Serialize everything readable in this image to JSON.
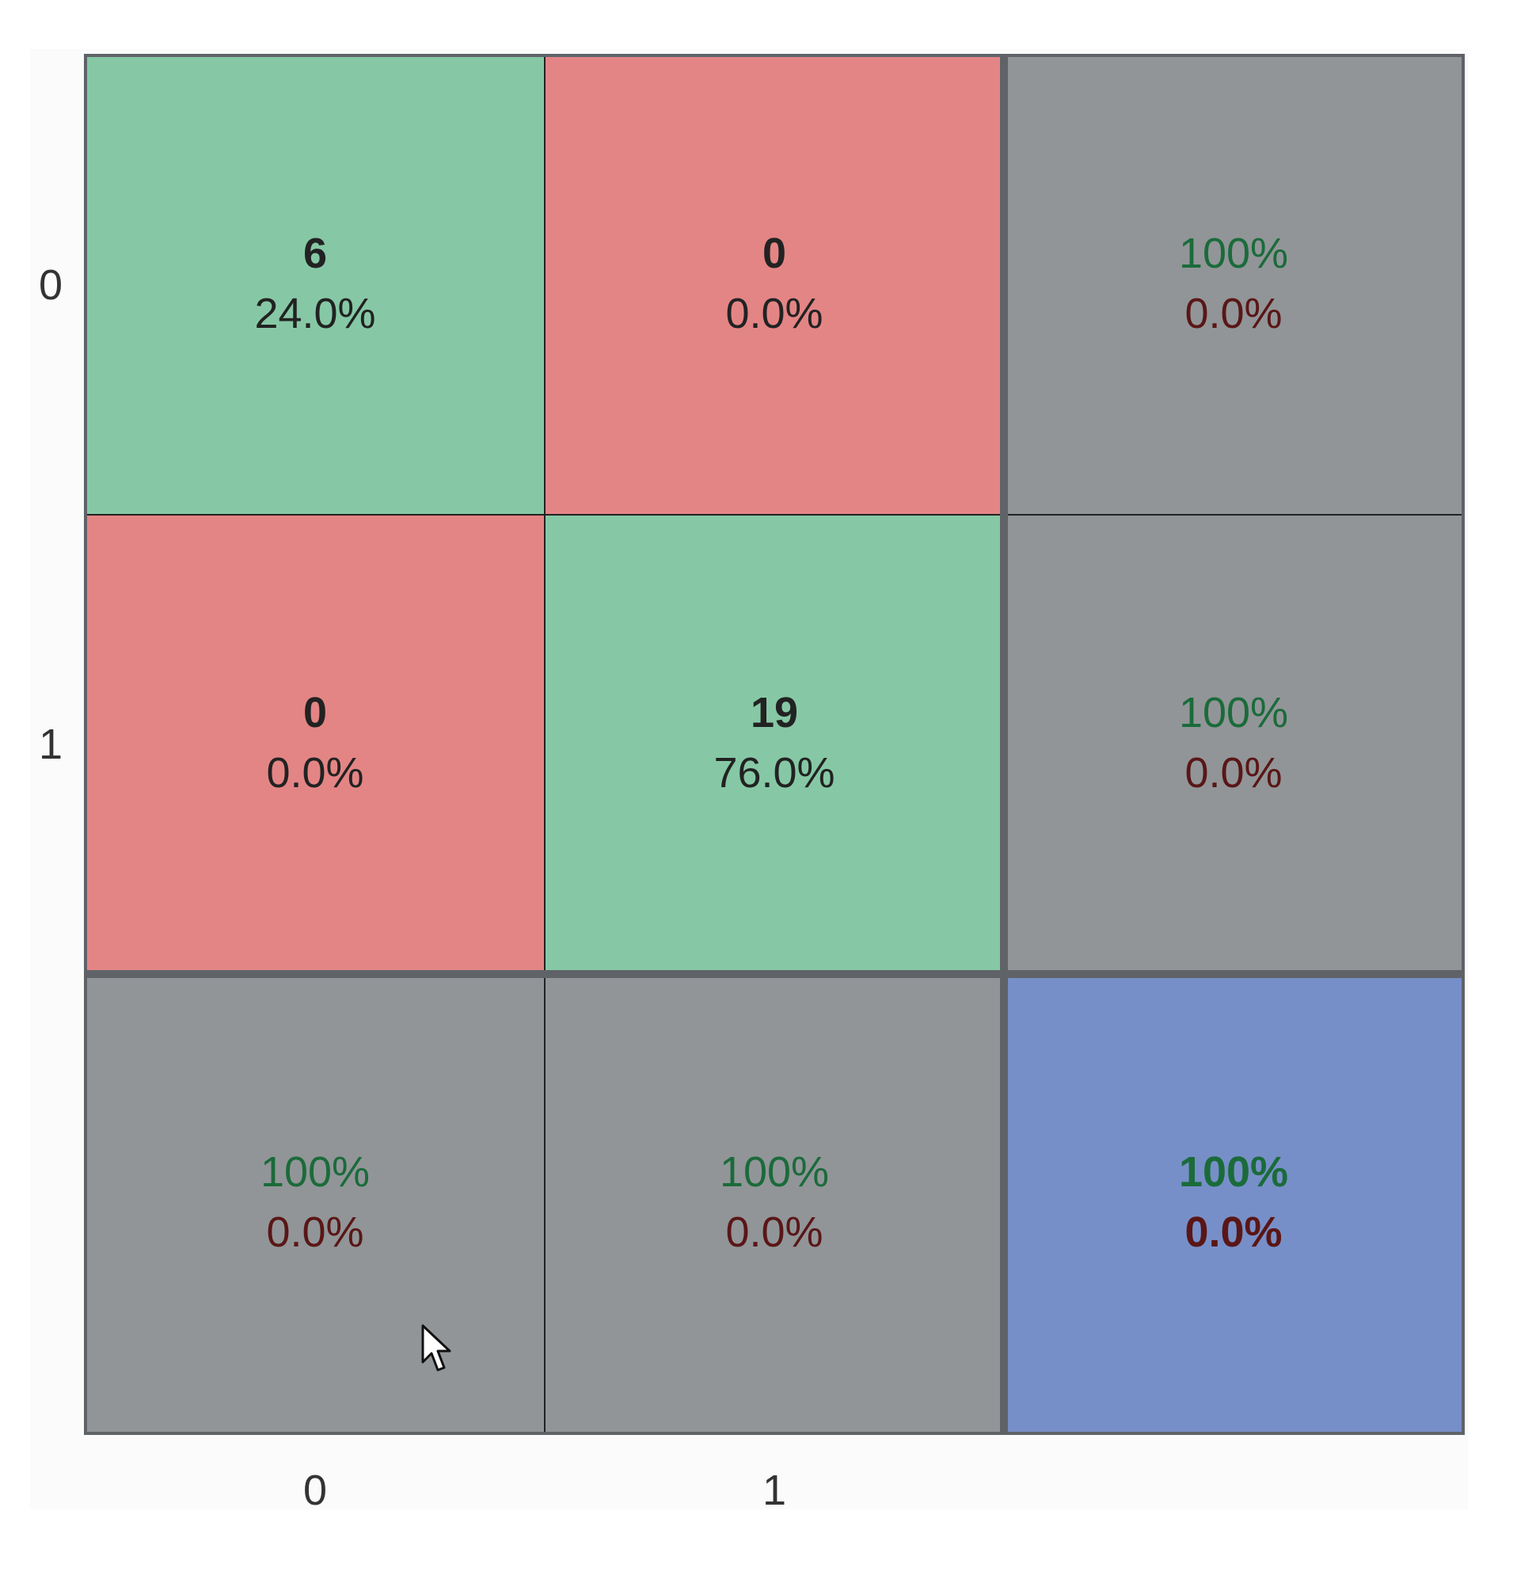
{
  "chart_data": {
    "type": "heatmap",
    "title": "",
    "xlabel": "",
    "ylabel": "",
    "row_tick_labels": [
      "0",
      "1"
    ],
    "col_tick_labels": [
      "0",
      "1"
    ],
    "grid": {
      "rows": 3,
      "cols": 3
    },
    "colors": {
      "correct": "#86c8a5",
      "incorrect": "#e48585",
      "summary": "#919598",
      "overall": "#778fc8",
      "pct_good": "#1b6b3a",
      "pct_bad": "#5a1616",
      "text": "#222222",
      "divider": "#5f6368"
    },
    "cells": [
      {
        "row": 0,
        "col": 0,
        "kind": "correct",
        "line1": "6",
        "line2": "24.0%",
        "bold": false
      },
      {
        "row": 0,
        "col": 1,
        "kind": "incorrect",
        "line1": "0",
        "line2": "0.0%",
        "bold": false
      },
      {
        "row": 0,
        "col": 2,
        "kind": "summary",
        "line1": "100%",
        "line2": "0.0%",
        "bold": false
      },
      {
        "row": 1,
        "col": 0,
        "kind": "incorrect",
        "line1": "0",
        "line2": "0.0%",
        "bold": false
      },
      {
        "row": 1,
        "col": 1,
        "kind": "correct",
        "line1": "19",
        "line2": "76.0%",
        "bold": false
      },
      {
        "row": 1,
        "col": 2,
        "kind": "summary",
        "line1": "100%",
        "line2": "0.0%",
        "bold": false
      },
      {
        "row": 2,
        "col": 0,
        "kind": "summary",
        "line1": "100%",
        "line2": "0.0%",
        "bold": false
      },
      {
        "row": 2,
        "col": 1,
        "kind": "summary",
        "line1": "100%",
        "line2": "0.0%",
        "bold": false
      },
      {
        "row": 2,
        "col": 2,
        "kind": "overall",
        "line1": "100%",
        "line2": "0.0%",
        "bold": true
      }
    ]
  }
}
